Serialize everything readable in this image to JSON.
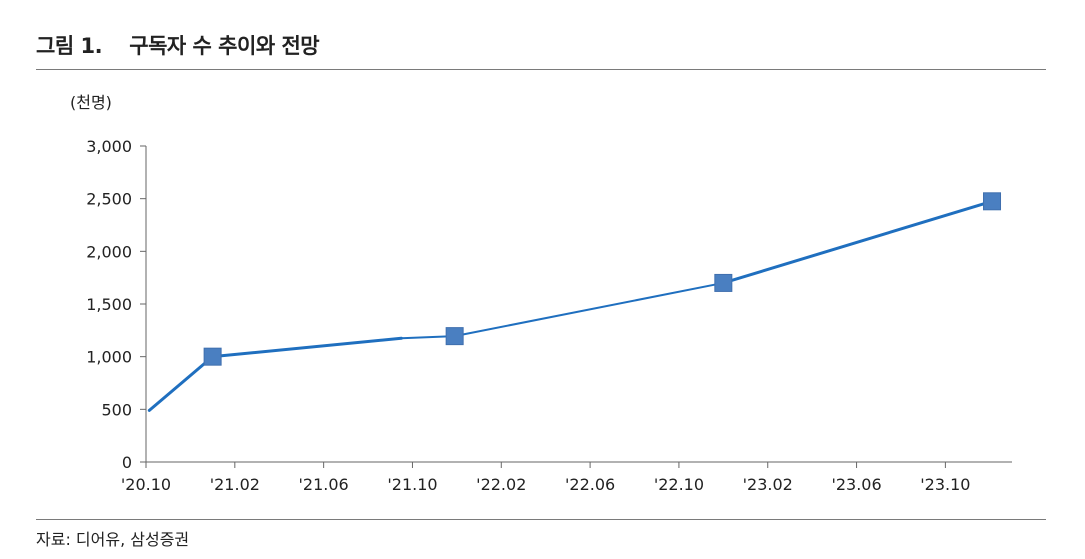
{
  "header": {
    "title": "그림 1.    구독자 수 추이와 전망"
  },
  "source": "자료: 디어유, 삼성증권",
  "chart_data": {
    "type": "line",
    "title": "구독자 수 추이와 전망",
    "ylabel": "(천명)",
    "xlabel": "",
    "ylim": [
      0,
      3000
    ],
    "yticks": [
      0,
      500,
      1000,
      1500,
      2000,
      2500,
      3000
    ],
    "ytick_labels": [
      "0",
      "500",
      "1,000",
      "1,500",
      "2,000",
      "2,500",
      "3,000"
    ],
    "xticks": [
      "'20.10",
      "'21.02",
      "'21.06",
      "'21.10",
      "'22.02",
      "'22.06",
      "'22.10",
      "'23.02",
      "'23.06",
      "'23.10"
    ],
    "x_range_months": [
      0,
      39
    ],
    "series": [
      {
        "name": "",
        "color": "#1f6fbf",
        "marker_color": "#4a7fc1",
        "points": [
          {
            "month": 0.15,
            "value": 490,
            "marker": false
          },
          {
            "month": 3.0,
            "value": 1000,
            "marker": true
          },
          {
            "month": 11.5,
            "value": 1175,
            "marker": false
          },
          {
            "month": 13.9,
            "value": 1195,
            "marker": true
          },
          {
            "month": 26.0,
            "value": 1700,
            "marker": true
          },
          {
            "month": 38.1,
            "value": 2475,
            "marker": true
          }
        ]
      }
    ],
    "grid": false,
    "legend": "none"
  }
}
